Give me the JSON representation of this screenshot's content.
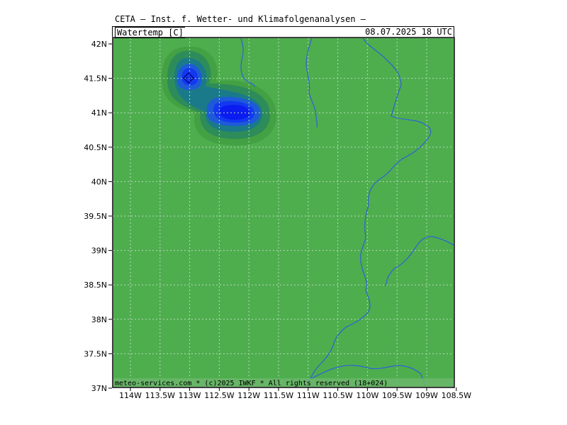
{
  "header": {
    "title": "CETA — Inst. f. Wetter- und Klimafolgenanalysen —",
    "variable": "Watertemp [C]",
    "valid_time": "08.07.2025  18 UTC"
  },
  "footer": {
    "credit": "meteo-services.com * (c)2025 IWKF * All rights reserved (18+024)"
  },
  "axes": {
    "x_ticks": [
      "114W",
      "113.5W",
      "113W",
      "112.5W",
      "112W",
      "111.5W",
      "111W",
      "110.5W",
      "110W",
      "109.5W",
      "109W",
      "108.5W"
    ],
    "y_ticks": [
      "42N",
      "41.5N",
      "41N",
      "40.5N",
      "40N",
      "39.5N",
      "39N",
      "38.5N",
      "38N",
      "37.5N",
      "37N"
    ]
  },
  "colors": {
    "background": "#4eae4e",
    "river": "#3060d8",
    "grid": "#b8d8b8",
    "contour_levels": [
      "#43a043",
      "#2d8c5a",
      "#1a7a8a",
      "#1e5ad8",
      "#1238f0",
      "#0a1cf0"
    ]
  },
  "features": {
    "cold_spots": [
      {
        "name": "north-blob",
        "lon": -113.0,
        "lat": 41.5
      },
      {
        "name": "south-blob",
        "lon": -112.1,
        "lat": 41.0
      }
    ]
  }
}
